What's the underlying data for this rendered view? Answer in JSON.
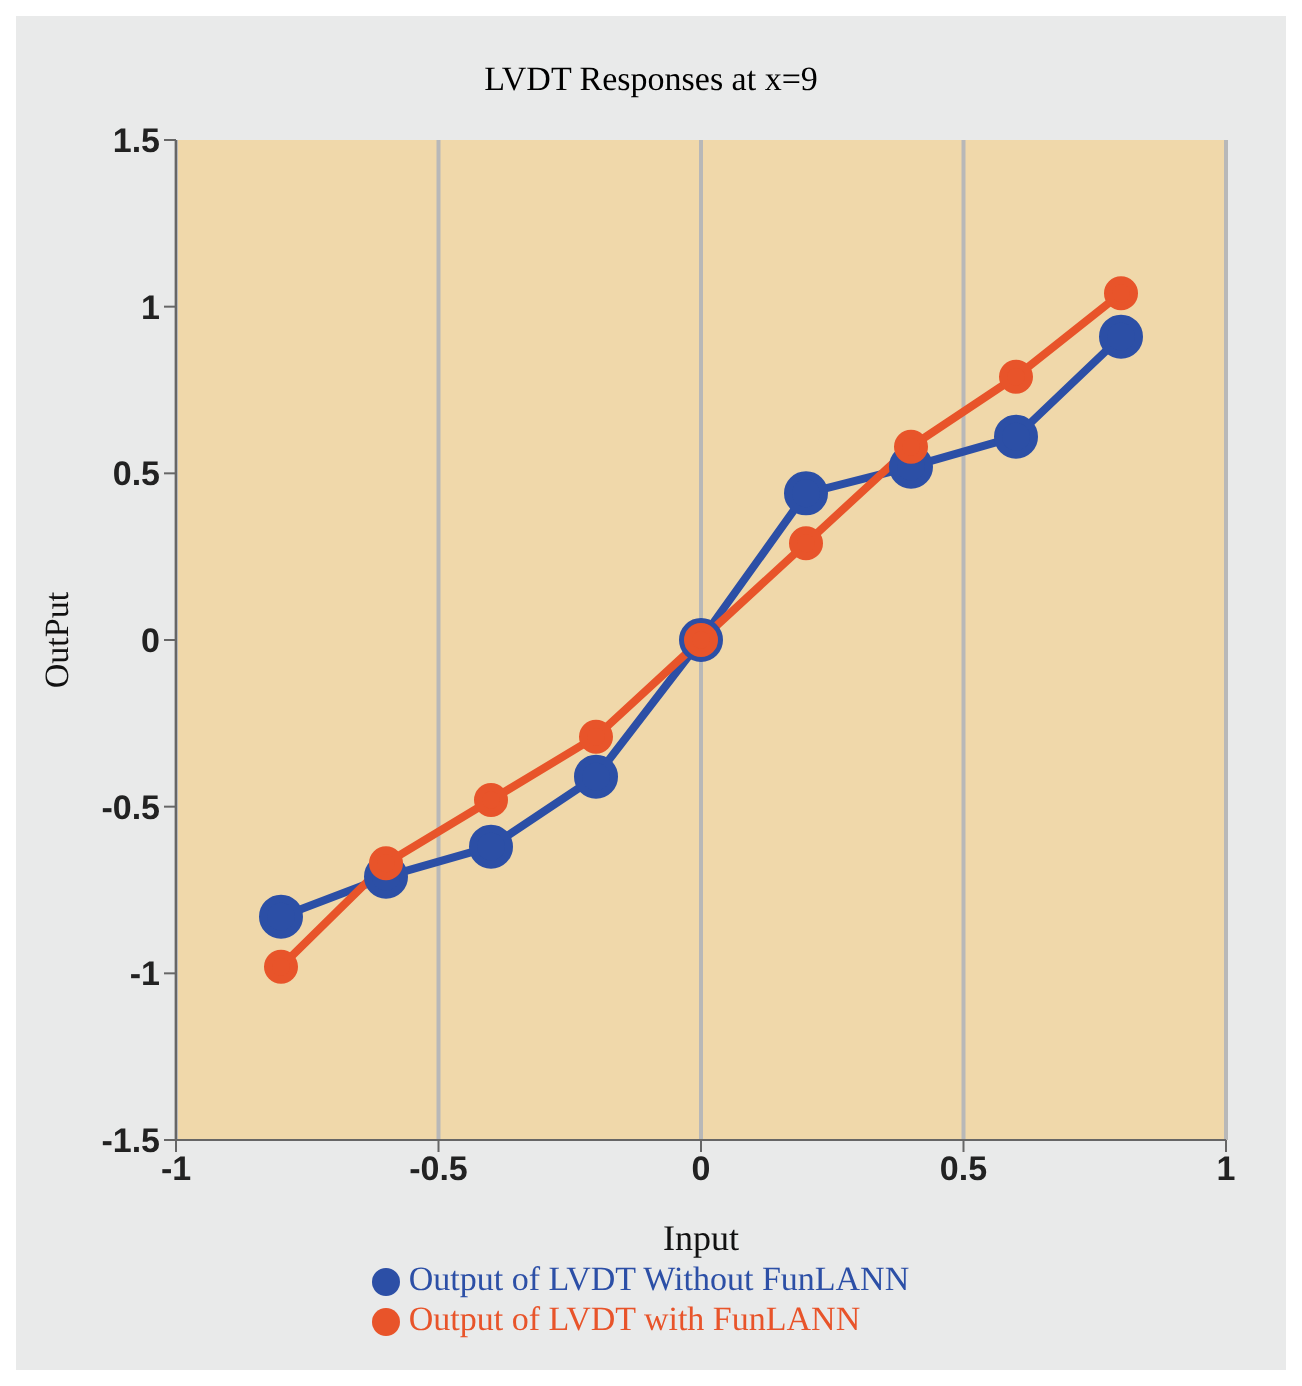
{
  "chart_data": {
    "type": "line",
    "title": "LVDT  Responses at x=9",
    "xlabel": "Input",
    "ylabel": "OutPut",
    "x": [
      -0.8,
      -0.6,
      -0.4,
      -0.2,
      0,
      0.2,
      0.4,
      0.6,
      0.8
    ],
    "series": [
      {
        "name": "Output of LVDT Without FunLANN",
        "color": "#2c4fa6",
        "values": [
          -0.83,
          -0.71,
          -0.62,
          -0.41,
          0,
          0.44,
          0.52,
          0.61,
          0.91
        ]
      },
      {
        "name": "Output of LVDT with FunLANN",
        "color": "#e8542a",
        "values": [
          -0.98,
          -0.67,
          -0.48,
          -0.29,
          0,
          0.29,
          0.58,
          0.79,
          1.04
        ]
      }
    ],
    "xlim": [
      -1,
      1
    ],
    "xticks": [
      -1,
      -0.5,
      0,
      0.5,
      1
    ],
    "ylim": [
      -1.5,
      1.5
    ],
    "yticks": [
      -1.5,
      -1,
      -0.5,
      0,
      0.5,
      1,
      1.5
    ],
    "grid": "x",
    "legend": "bottom",
    "marker": "circle",
    "line_style": "solid"
  }
}
